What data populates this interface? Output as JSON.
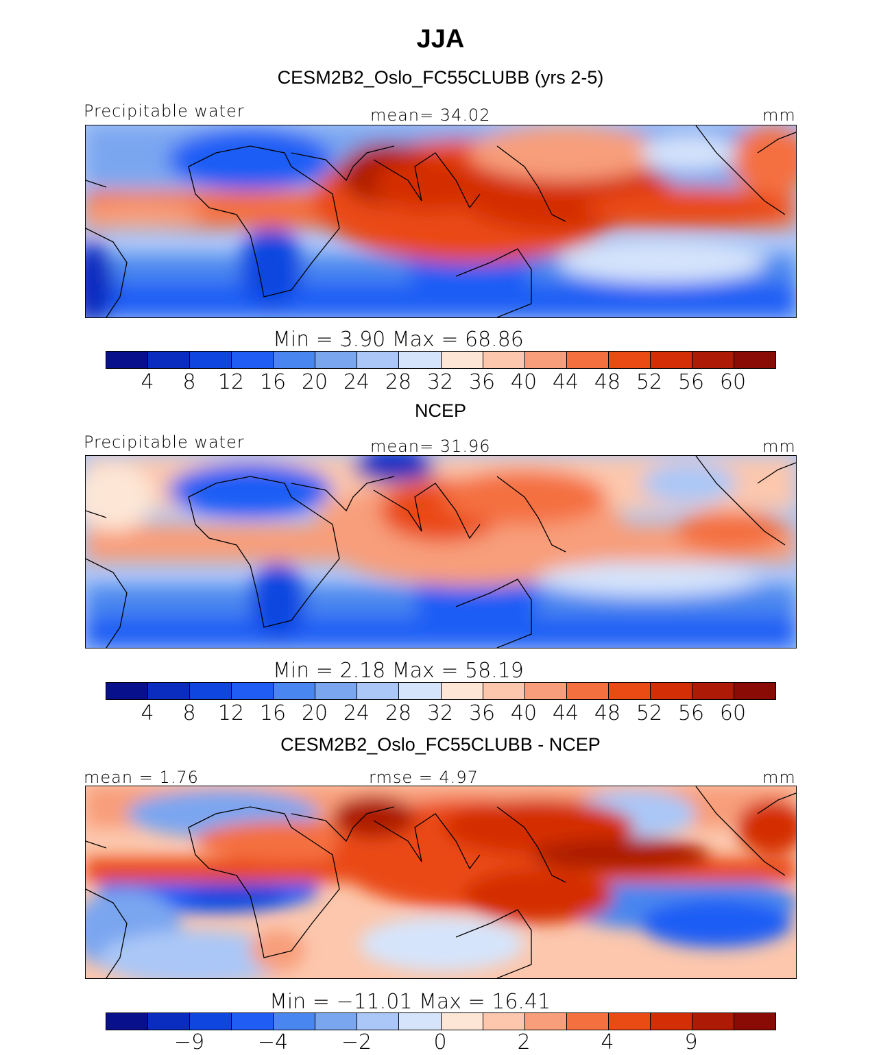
{
  "title": "JJA",
  "panels": [
    {
      "title": "CESM2B2_Oslo_FC55CLUBB (yrs 2-5)",
      "left_label": "Precipitable water",
      "center_label": "mean=  34.02",
      "right_label": "mm",
      "minmax": "Min =    3.90 Max =   68.86",
      "ticks": [
        "4",
        "8",
        "12",
        "16",
        "20",
        "24",
        "28",
        "32",
        "36",
        "40",
        "44",
        "48",
        "52",
        "56",
        "60"
      ]
    },
    {
      "title": "NCEP",
      "left_label": "Precipitable water",
      "center_label": "mean=  31.96",
      "right_label": "mm",
      "minmax": "Min =    2.18 Max =   58.19",
      "ticks": [
        "4",
        "8",
        "12",
        "16",
        "20",
        "24",
        "28",
        "32",
        "36",
        "40",
        "44",
        "48",
        "52",
        "56",
        "60"
      ]
    },
    {
      "title": "CESM2B2_Oslo_FC55CLUBB - NCEP",
      "left_label": "mean =   1.76",
      "center_label": "rmse =   4.97",
      "right_label": "mm",
      "minmax": "Min = −11.01 Max =   16.41",
      "ticks": [
        "−9",
        "−4",
        "−2",
        "0",
        "2",
        "4",
        "9"
      ]
    }
  ],
  "colors": {
    "palette": [
      "#08108c",
      "#0a2cbf",
      "#0f46e0",
      "#1f5df5",
      "#4a86ef",
      "#7aa6f0",
      "#aac7f7",
      "#d6e4fb",
      "#fde6d6",
      "#fcc7ad",
      "#f89e7a",
      "#f4703f",
      "#ea4a14",
      "#d42e06",
      "#ad1a05",
      "#8a0b05"
    ]
  },
  "chart_data": [
    {
      "type": "heatmap",
      "title": "CESM2B2_Oslo_FC55CLUBB (yrs 2-5)",
      "variable": "Precipitable water",
      "units": "mm",
      "mean": 34.02,
      "min": 3.9,
      "max": 68.86,
      "contour_levels": [
        4,
        8,
        12,
        16,
        20,
        24,
        28,
        32,
        36,
        40,
        44,
        48,
        52,
        56,
        60
      ]
    },
    {
      "type": "heatmap",
      "title": "NCEP",
      "variable": "Precipitable water",
      "units": "mm",
      "mean": 31.96,
      "min": 2.18,
      "max": 58.19,
      "contour_levels": [
        4,
        8,
        12,
        16,
        20,
        24,
        28,
        32,
        36,
        40,
        44,
        48,
        52,
        56,
        60
      ]
    },
    {
      "type": "heatmap",
      "title": "CESM2B2_Oslo_FC55CLUBB - NCEP",
      "units": "mm",
      "mean": 1.76,
      "rmse": 4.97,
      "min": -11.01,
      "max": 16.41,
      "contour_levels": [
        -9,
        -4,
        -2,
        0,
        2,
        4,
        9
      ]
    }
  ]
}
